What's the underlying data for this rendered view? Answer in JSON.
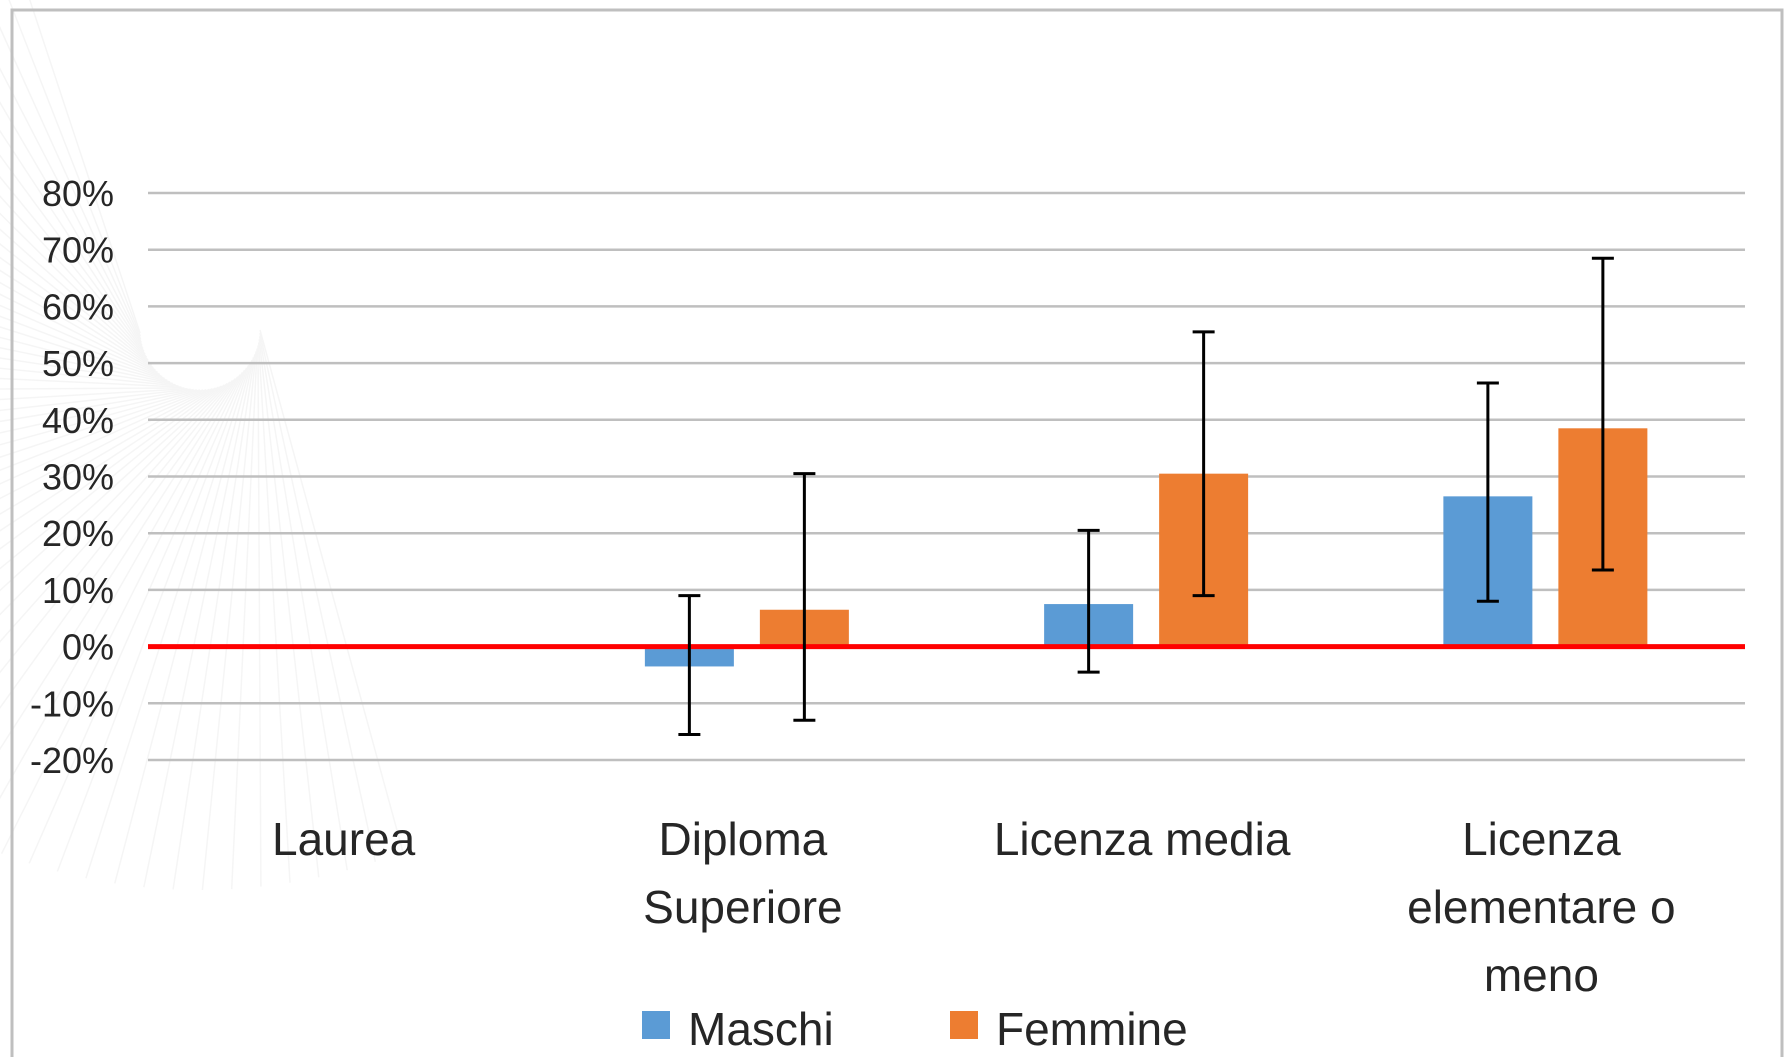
{
  "chart_data": {
    "type": "bar",
    "title": "",
    "xlabel": "",
    "ylabel": "",
    "categories": [
      [
        "Laurea"
      ],
      [
        "Diploma",
        "Superiore"
      ],
      [
        "Licenza media"
      ],
      [
        "Licenza",
        "elementare o",
        "meno"
      ]
    ],
    "series": [
      {
        "name": "Maschi",
        "color": "#5b9bd5",
        "values": [
          null,
          -3.5,
          7.5,
          26.5
        ],
        "error_low": [
          null,
          -15.5,
          -4.5,
          8.0
        ],
        "error_high": [
          null,
          9.0,
          20.5,
          46.5
        ]
      },
      {
        "name": "Femmine",
        "color": "#ed7d31",
        "values": [
          null,
          6.5,
          30.5,
          38.5
        ],
        "error_low": [
          null,
          -13.0,
          9.0,
          13.5
        ],
        "error_high": [
          null,
          30.5,
          55.5,
          68.5
        ]
      }
    ],
    "ylim": [
      -20,
      80
    ],
    "yticks": [
      "80%",
      "70%",
      "60%",
      "50%",
      "40%",
      "30%",
      "20%",
      "10%",
      "0%",
      "-10%",
      "-20%"
    ],
    "ytick_values": [
      80,
      70,
      60,
      50,
      40,
      30,
      20,
      10,
      0,
      -10,
      -20
    ],
    "reference_line": {
      "value": 0,
      "color": "#ff0000"
    },
    "grid": true,
    "gridline_color": "#bfbfbf",
    "legend_position": "bottom"
  }
}
